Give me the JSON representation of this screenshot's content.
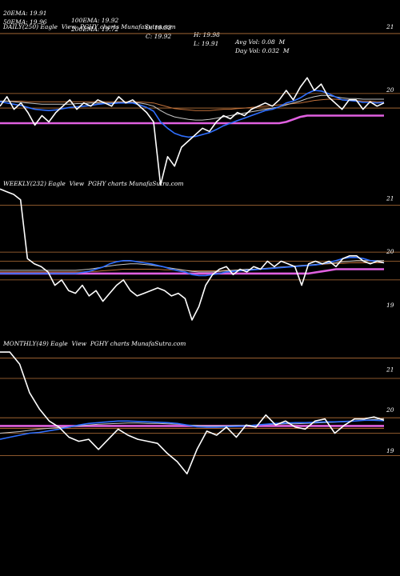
{
  "header": {
    "row1": [
      "20EMA: 19.91",
      "100EMA: 19.92",
      "O: 19.92",
      "H: 19.98",
      "Avg Vol: 0.08  M"
    ],
    "row2": [
      "50EMA: 19.96",
      "200EMA: 19.72",
      "C: 19.92",
      "L: 19.91",
      "Day Vol: 0.032  M"
    ]
  },
  "colors": {
    "background": "#000000",
    "price": "#ffffff",
    "grid": "#b8733a",
    "ema_fast": "#2f6fff",
    "ema_mid": "#c8c8c8",
    "ema_slow": "#c0703a",
    "ema_long": "#e060e0"
  },
  "chart_data": [
    {
      "type": "line",
      "label": "DAILY(250) Eagle  View  PGHY charts MunafaSutra.com",
      "yticks": [
        "21",
        "20"
      ],
      "ylim": [
        18.3,
        21.05
      ],
      "gridlines": [
        21,
        20.05,
        19.82
      ],
      "series": [
        {
          "role": "price",
          "values": [
            19.85,
            20.0,
            19.8,
            19.9,
            19.75,
            19.55,
            19.7,
            19.6,
            19.75,
            19.85,
            19.95,
            19.8,
            19.9,
            19.85,
            19.95,
            19.9,
            19.85,
            20.0,
            19.9,
            19.95,
            19.85,
            19.75,
            19.6,
            18.6,
            19.05,
            18.9,
            19.2,
            19.3,
            19.4,
            19.5,
            19.45,
            19.6,
            19.7,
            19.65,
            19.75,
            19.7,
            19.8,
            19.85,
            19.9,
            19.85,
            19.95,
            20.1,
            19.95,
            20.15,
            20.3,
            20.1,
            20.2,
            20.0,
            19.9,
            19.8,
            19.95,
            19.95,
            19.8,
            19.92,
            19.85,
            19.9
          ]
        },
        {
          "role": "ema20",
          "values": [
            19.92,
            19.9,
            19.88,
            19.86,
            19.83,
            19.8,
            19.79,
            19.78,
            19.79,
            19.81,
            19.83,
            19.84,
            19.85,
            19.86,
            19.88,
            19.89,
            19.89,
            19.9,
            19.9,
            19.9,
            19.87,
            19.83,
            19.77,
            19.6,
            19.5,
            19.42,
            19.38,
            19.36,
            19.37,
            19.4,
            19.43,
            19.48,
            19.54,
            19.58,
            19.62,
            19.66,
            19.7,
            19.74,
            19.78,
            19.8,
            19.84,
            19.9,
            19.93,
            19.98,
            20.05,
            20.1,
            20.09,
            20.05,
            20.0,
            19.95,
            19.94,
            19.93,
            19.91,
            19.91,
            19.9,
            19.91
          ]
        },
        {
          "role": "ema50",
          "values": [
            19.93,
            19.93,
            19.92,
            19.91,
            19.9,
            19.89,
            19.88,
            19.88,
            19.88,
            19.88,
            19.88,
            19.89,
            19.89,
            19.9,
            19.9,
            19.9,
            19.9,
            19.91,
            19.91,
            19.91,
            19.9,
            19.88,
            19.85,
            19.78,
            19.72,
            19.68,
            19.66,
            19.64,
            19.63,
            19.63,
            19.64,
            19.66,
            19.68,
            19.7,
            19.72,
            19.74,
            19.76,
            19.78,
            19.8,
            19.82,
            19.84,
            19.87,
            19.9,
            19.93,
            19.97,
            20.0,
            20.02,
            20.02,
            20.0,
            19.98,
            19.97,
            19.97,
            19.96,
            19.96,
            19.96,
            19.96
          ]
        },
        {
          "role": "ema100",
          "values": [
            19.93,
            19.93,
            19.93,
            19.93,
            19.92,
            19.92,
            19.92,
            19.92,
            19.92,
            19.92,
            19.92,
            19.92,
            19.92,
            19.92,
            19.92,
            19.92,
            19.92,
            19.92,
            19.92,
            19.92,
            19.92,
            19.91,
            19.9,
            19.87,
            19.84,
            19.81,
            19.8,
            19.79,
            19.78,
            19.78,
            19.78,
            19.79,
            19.8,
            19.8,
            19.81,
            19.82,
            19.83,
            19.84,
            19.85,
            19.86,
            19.87,
            19.88,
            19.89,
            19.9,
            19.92,
            19.94,
            19.95,
            19.96,
            19.96,
            19.95,
            19.95,
            19.94,
            19.93,
            19.93,
            19.92,
            19.92
          ]
        },
        {
          "role": "ema200",
          "values": [
            19.58,
            19.58,
            19.58,
            19.58,
            19.58,
            19.58,
            19.58,
            19.58,
            19.58,
            19.58,
            19.58,
            19.58,
            19.58,
            19.58,
            19.58,
            19.58,
            19.58,
            19.58,
            19.58,
            19.58,
            19.58,
            19.58,
            19.58,
            19.58,
            19.58,
            19.58,
            19.58,
            19.58,
            19.58,
            19.58,
            19.58,
            19.58,
            19.58,
            19.58,
            19.58,
            19.58,
            19.58,
            19.58,
            19.58,
            19.58,
            19.58,
            19.6,
            19.64,
            19.68,
            19.7,
            19.7,
            19.7,
            19.7,
            19.7,
            19.7,
            19.7,
            19.7,
            19.7,
            19.7,
            19.7,
            19.7
          ]
        }
      ]
    },
    {
      "type": "line",
      "label": "WEEKLY(232) Eagle  View  PGHY charts MunafaSutra.com",
      "yticks": [
        "21",
        "20",
        "19"
      ],
      "ylim": [
        18.55,
        21.35
      ],
      "gridlines": [
        21,
        20.12,
        19.95,
        19.6
      ],
      "series": [
        {
          "role": "price",
          "values": [
            21.3,
            21.25,
            21.2,
            21.1,
            20.0,
            19.9,
            19.85,
            19.75,
            19.5,
            19.6,
            19.4,
            19.35,
            19.5,
            19.3,
            19.4,
            19.2,
            19.35,
            19.5,
            19.6,
            19.4,
            19.3,
            19.35,
            19.4,
            19.45,
            19.4,
            19.3,
            19.35,
            19.25,
            18.85,
            19.1,
            19.5,
            19.7,
            19.8,
            19.85,
            19.7,
            19.8,
            19.75,
            19.85,
            19.8,
            19.95,
            19.85,
            19.95,
            19.9,
            19.85,
            19.5,
            19.9,
            19.95,
            19.9,
            19.95,
            19.85,
            20.0,
            20.05,
            20.05,
            19.95,
            19.9,
            19.95,
            19.92
          ]
        },
        {
          "role": "ema20",
          "values": [
            19.72,
            19.72,
            19.72,
            19.72,
            19.72,
            19.72,
            19.72,
            19.72,
            19.72,
            19.72,
            19.72,
            19.72,
            19.74,
            19.76,
            19.8,
            19.84,
            19.9,
            19.94,
            19.96,
            19.96,
            19.94,
            19.92,
            19.9,
            19.87,
            19.84,
            19.8,
            19.77,
            19.75,
            19.7,
            19.68,
            19.68,
            19.7,
            19.72,
            19.75,
            19.76,
            19.77,
            19.78,
            19.79,
            19.8,
            19.81,
            19.82,
            19.83,
            19.84,
            19.85,
            19.86,
            19.87,
            19.88,
            19.9,
            19.93,
            19.96,
            20.0,
            20.02,
            20.02,
            20.0,
            19.96,
            19.95,
            19.92
          ]
        },
        {
          "role": "ema50",
          "values": [
            19.78,
            19.78,
            19.78,
            19.78,
            19.78,
            19.78,
            19.78,
            19.78,
            19.78,
            19.78,
            19.78,
            19.78,
            19.79,
            19.8,
            19.82,
            19.84,
            19.86,
            19.88,
            19.89,
            19.9,
            19.9,
            19.89,
            19.88,
            19.86,
            19.84,
            19.82,
            19.8,
            19.78,
            19.76,
            19.75,
            19.75,
            19.75,
            19.76,
            19.77,
            19.78,
            19.79,
            19.8,
            19.8,
            19.81,
            19.82,
            19.83,
            19.84,
            19.85,
            19.86,
            19.87,
            19.88,
            19.89,
            19.9,
            19.91,
            19.92,
            19.94,
            19.95,
            19.96,
            19.96,
            19.96,
            19.96,
            19.96
          ]
        },
        {
          "role": "ema100",
          "values": [
            19.75,
            19.75,
            19.75,
            19.75,
            19.75,
            19.75,
            19.75,
            19.75,
            19.75,
            19.75,
            19.75,
            19.75,
            19.75,
            19.76,
            19.76,
            19.77,
            19.78,
            19.79,
            19.8,
            19.8,
            19.8,
            19.8,
            19.8,
            19.8,
            19.79,
            19.79,
            19.78,
            19.78,
            19.77,
            19.77,
            19.77,
            19.77,
            19.77,
            19.78,
            19.78,
            19.79,
            19.79,
            19.8,
            19.8,
            19.81,
            19.82,
            19.83,
            19.84,
            19.85,
            19.86,
            19.87,
            19.88,
            19.89,
            19.9,
            19.91,
            19.91,
            19.92,
            19.92,
            19.92,
            19.92,
            19.92,
            19.92
          ]
        },
        {
          "role": "ema200",
          "values": [
            19.72,
            19.72,
            19.72,
            19.72,
            19.72,
            19.72,
            19.72,
            19.72,
            19.72,
            19.72,
            19.72,
            19.72,
            19.72,
            19.72,
            19.72,
            19.72,
            19.72,
            19.72,
            19.72,
            19.72,
            19.72,
            19.72,
            19.72,
            19.72,
            19.72,
            19.72,
            19.72,
            19.72,
            19.72,
            19.72,
            19.72,
            19.72,
            19.72,
            19.72,
            19.72,
            19.72,
            19.72,
            19.72,
            19.72,
            19.72,
            19.72,
            19.72,
            19.72,
            19.72,
            19.72,
            19.72,
            19.74,
            19.76,
            19.78,
            19.8,
            19.8,
            19.8,
            19.8,
            19.8,
            19.8,
            19.8,
            19.8
          ]
        }
      ]
    },
    {
      "type": "line",
      "label": "MONTHLY(49) Eagle  View  PGHY charts MunafaSutra.com",
      "yticks": [
        "21",
        "20",
        "19"
      ],
      "ylim": [
        18.15,
        21.7
      ],
      "gridlines": [
        21.45,
        20.95,
        19.98,
        19.6,
        19.05
      ],
      "series": [
        {
          "role": "price",
          "values": [
            21.6,
            21.6,
            21.3,
            20.6,
            20.2,
            19.9,
            19.75,
            19.5,
            19.4,
            19.45,
            19.2,
            19.45,
            19.7,
            19.55,
            19.45,
            19.4,
            19.35,
            19.1,
            18.9,
            18.6,
            19.2,
            19.65,
            19.55,
            19.75,
            19.5,
            19.8,
            19.75,
            20.05,
            19.8,
            19.9,
            19.75,
            19.7,
            19.9,
            19.95,
            19.6,
            19.8,
            19.95,
            19.95,
            20.0,
            19.92
          ]
        },
        {
          "role": "ema20",
          "values": [
            19.45,
            19.5,
            19.55,
            19.6,
            19.62,
            19.66,
            19.7,
            19.75,
            19.8,
            19.84,
            19.86,
            19.88,
            19.9,
            19.9,
            19.89,
            19.88,
            19.87,
            19.86,
            19.84,
            19.8,
            19.76,
            19.75,
            19.75,
            19.76,
            19.77,
            19.78,
            19.8,
            19.82,
            19.84,
            19.85,
            19.86,
            19.86,
            19.87,
            19.88,
            19.88,
            19.89,
            19.9,
            19.92,
            19.92,
            19.91
          ]
        },
        {
          "role": "ema50",
          "values": [
            19.6,
            19.62,
            19.64,
            19.67,
            19.7,
            19.72,
            19.74,
            19.75,
            19.78,
            19.8,
            19.82,
            19.83,
            19.84,
            19.85,
            19.85,
            19.84,
            19.84,
            19.83,
            19.82,
            19.8,
            19.79,
            19.78,
            19.78,
            19.78,
            19.79,
            19.79,
            19.8,
            19.81,
            19.82,
            19.83,
            19.83,
            19.84,
            19.85,
            19.86,
            19.87,
            19.88,
            19.9,
            19.92,
            19.94,
            19.96
          ]
        },
        {
          "role": "ema100",
          "values": [
            19.72,
            19.72,
            19.72,
            19.72,
            19.72,
            19.72,
            19.72,
            19.72,
            19.72,
            19.72,
            19.72,
            19.72,
            19.72,
            19.72,
            19.72,
            19.72,
            19.72,
            19.72,
            19.72,
            19.72,
            19.72,
            19.72,
            19.72,
            19.72,
            19.72,
            19.72,
            19.72,
            19.72,
            19.72,
            19.72,
            19.72,
            19.72,
            19.72,
            19.72,
            19.72,
            19.72,
            19.72,
            19.72,
            19.72,
            19.72
          ]
        },
        {
          "role": "ema200",
          "values": [
            19.78,
            19.78,
            19.78,
            19.78,
            19.78,
            19.78,
            19.78,
            19.78,
            19.78,
            19.78,
            19.78,
            19.78,
            19.78,
            19.78,
            19.78,
            19.78,
            19.78,
            19.78,
            19.78,
            19.78,
            19.78,
            19.78,
            19.78,
            19.78,
            19.78,
            19.78,
            19.78,
            19.78,
            19.78,
            19.78,
            19.78,
            19.78,
            19.78,
            19.78,
            19.78,
            19.78,
            19.78,
            19.78,
            19.78,
            19.78
          ]
        }
      ]
    }
  ]
}
